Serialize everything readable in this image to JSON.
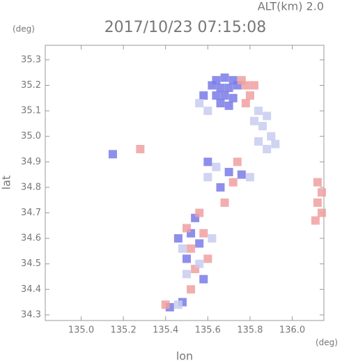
{
  "chart_data": {
    "type": "scatter",
    "title": "2017/10/23 07:15:08",
    "subtitle": "ALT(km) 2.0",
    "y_unit": "(deg)",
    "x_unit": "(deg)",
    "xlabel": "lon",
    "ylabel": "lat",
    "xlim": [
      134.83,
      136.15
    ],
    "ylim": [
      34.278,
      35.357
    ],
    "xticks": [
      {
        "value": 135.0,
        "label": "135.0"
      },
      135.2,
      135.4,
      135.6,
      135.8,
      {
        "value": 136.0,
        "label": "136.0"
      }
    ],
    "yticks": [
      34.3,
      34.4,
      34.5,
      34.6,
      34.7,
      34.8,
      34.9,
      {
        "value": 35.0,
        "label": "35.0"
      },
      35.1,
      35.2,
      35.3
    ],
    "series": [
      {
        "color": "#7a7ae8",
        "x": [
          135.64,
          135.68,
          135.72,
          135.66,
          135.7,
          135.74,
          135.64,
          135.68,
          135.72,
          135.66,
          135.7,
          135.58,
          135.62,
          135.6,
          135.7,
          135.52,
          135.56,
          135.5,
          135.58,
          135.46,
          135.54,
          135.42,
          135.48,
          135.15,
          135.76,
          135.66
        ],
        "y": [
          35.22,
          35.23,
          35.22,
          35.19,
          35.19,
          35.2,
          35.16,
          35.16,
          35.15,
          35.13,
          35.12,
          35.16,
          35.2,
          34.9,
          34.86,
          34.62,
          34.58,
          34.52,
          34.44,
          34.6,
          34.68,
          34.33,
          34.35,
          34.93,
          34.85,
          34.8
        ]
      },
      {
        "color": "#f0a0a0",
        "x": [
          135.78,
          135.8,
          135.78,
          135.76,
          135.82,
          136.12,
          136.14,
          136.12,
          136.14,
          136.11,
          135.56,
          135.52,
          135.58,
          135.54,
          135.5,
          135.6,
          135.72,
          135.68,
          135.74,
          135.4,
          135.52,
          135.28
        ],
        "y": [
          35.2,
          35.16,
          35.13,
          35.22,
          35.2,
          34.82,
          34.78,
          34.74,
          34.7,
          34.67,
          34.7,
          34.56,
          34.62,
          34.48,
          34.64,
          34.52,
          34.82,
          34.74,
          34.9,
          34.34,
          34.4,
          34.95
        ]
      },
      {
        "color": "#c8ccf0",
        "x": [
          135.84,
          135.88,
          135.86,
          135.9,
          135.84,
          135.92,
          135.88,
          135.82,
          135.56,
          135.6,
          135.64,
          135.6,
          135.48,
          135.56,
          135.62,
          135.5,
          135.8,
          135.46
        ],
        "y": [
          35.1,
          35.08,
          35.04,
          35.0,
          34.98,
          34.97,
          34.95,
          35.06,
          35.13,
          35.1,
          34.88,
          34.84,
          34.56,
          34.5,
          34.6,
          34.46,
          34.84,
          34.34
        ]
      }
    ]
  }
}
